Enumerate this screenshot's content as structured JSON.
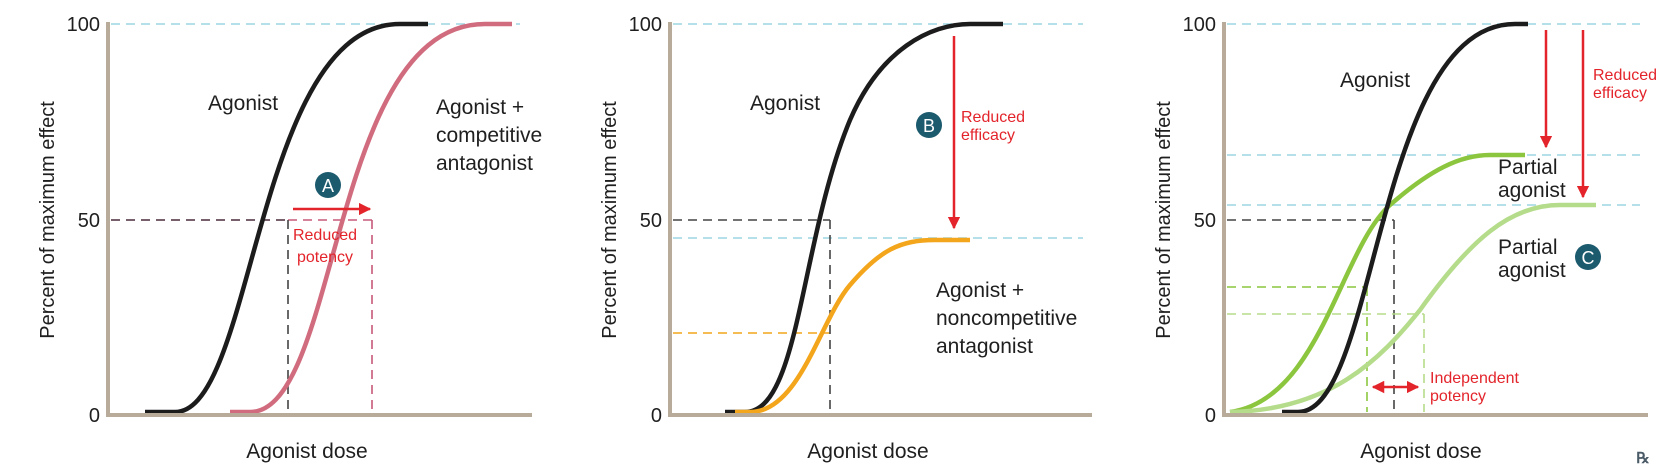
{
  "colors": {
    "axis": "#b9ab99",
    "agonist": "#1c1c1c",
    "competitive": "#d06c7e",
    "noncompetitive": "#f3a51b",
    "partial_high": "#8cc63f",
    "partial_low": "#b5dc8a",
    "dash_teal": "#9ed6e2",
    "annotation": "#e3242b",
    "badge": "#1c5a6e"
  },
  "panels": [
    {
      "ylabel": "Percent of maximum effect",
      "xlabel": "Agonist dose",
      "y_ticks": [
        "0",
        "50",
        "100"
      ],
      "labels": {
        "agonist": "Agonist",
        "curve2": [
          "Agonist +",
          "competitive",
          "antagonist"
        ]
      },
      "badge": "A",
      "annotation": [
        "Reduced",
        "potency"
      ]
    },
    {
      "ylabel": "Percent of maximum effect",
      "xlabel": "Agonist dose",
      "y_ticks": [
        "0",
        "50",
        "100"
      ],
      "labels": {
        "agonist": "Agonist",
        "curve2": [
          "Agonist +",
          "noncompetitive",
          "antagonist"
        ]
      },
      "badge": "B",
      "annotation": [
        "Reduced",
        "efficacy"
      ]
    },
    {
      "ylabel": "Percent of maximum effect",
      "xlabel": "Agonist dose",
      "y_ticks": [
        "0",
        "50",
        "100"
      ],
      "labels": {
        "agonist": "Agonist",
        "partial1": [
          "Partial",
          "agonist"
        ],
        "partial2": [
          "Partial",
          "agonist"
        ]
      },
      "badge": "C",
      "annotation_efficacy": [
        "Reduced",
        "efficacy"
      ],
      "annotation_potency": [
        "Independent",
        "potency"
      ]
    }
  ],
  "logo": "℞"
}
